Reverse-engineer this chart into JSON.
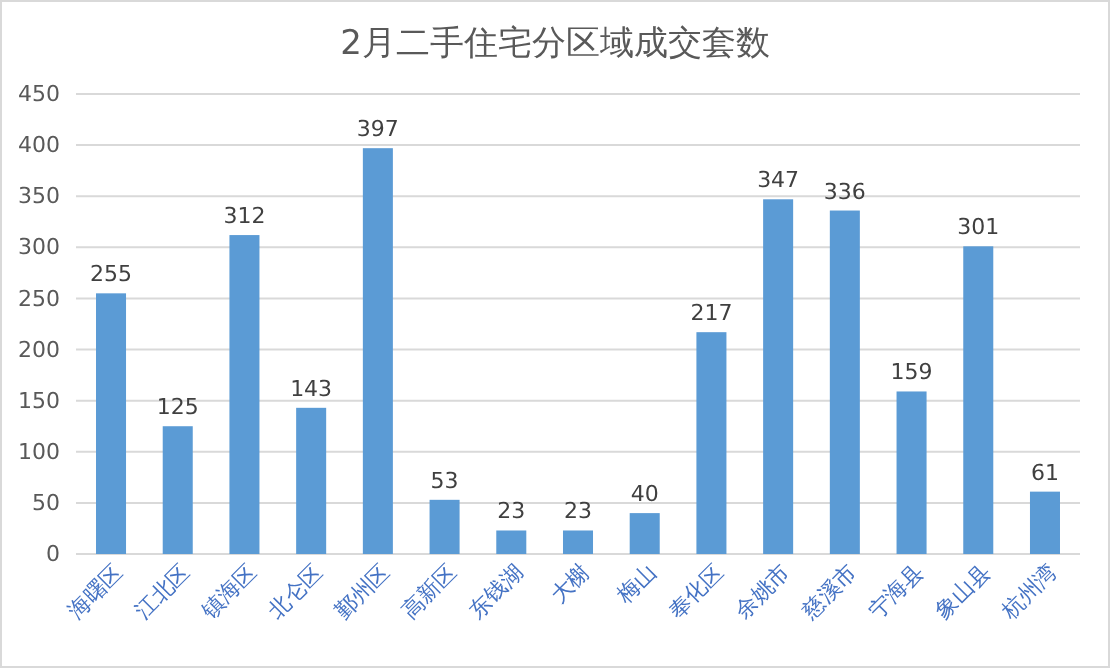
{
  "chart_data": {
    "type": "bar",
    "title": "2月二手住宅分区域成交套数",
    "categories": [
      "海曙区",
      "江北区",
      "镇海区",
      "北仑区",
      "鄞州区",
      "高新区",
      "东钱湖",
      "大榭",
      "梅山",
      "奉化区",
      "余姚市",
      "慈溪市",
      "宁海县",
      "象山县",
      "杭州湾"
    ],
    "values": [
      255,
      125,
      312,
      143,
      397,
      53,
      23,
      23,
      40,
      217,
      347,
      336,
      159,
      301,
      61
    ],
    "color": "#5b9bd5",
    "ylim": [
      0,
      450
    ],
    "yticks": [
      0,
      50,
      100,
      150,
      200,
      250,
      300,
      350,
      400,
      450
    ],
    "grid": "y",
    "data_labels": true
  }
}
